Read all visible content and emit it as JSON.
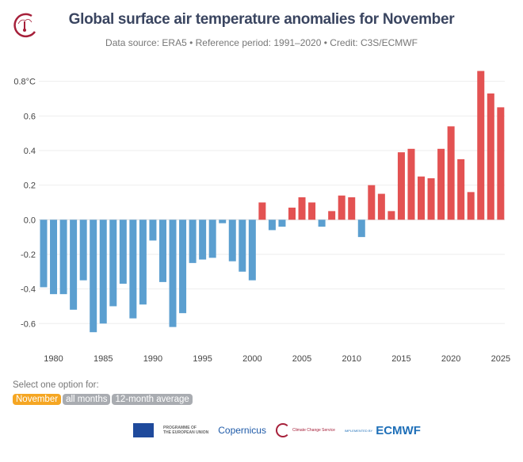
{
  "header": {
    "title": "Global surface air temperature anomalies for November",
    "subtitle": "Data source: ERA5 • Reference period: 1991–2020 • Credit: C3S/ECMWF"
  },
  "selector": {
    "label": "Select one option for:",
    "options": [
      "November",
      "all months",
      "12-month average"
    ],
    "selected": "November",
    "active_color": "#f5a623",
    "inactive_color": "#a9acb1"
  },
  "footer": {
    "eu_text_1": "PROGRAMME OF",
    "eu_text_2": "THE EUROPEAN UNION",
    "copernicus": "opernicus",
    "copernicus_sub": "Europe's eyes on Earth",
    "c3s": "Climate Change Service",
    "implemented": "IMPLEMENTED BY",
    "ecmwf": "ECMWF"
  },
  "chart_data": {
    "type": "bar",
    "title": "Global surface air temperature anomalies for November",
    "xlabel": "",
    "ylabel": "",
    "y_unit": "°C",
    "ylim": [
      -0.7,
      0.85
    ],
    "yticks": [
      -0.6,
      -0.4,
      -0.2,
      0.0,
      0.2,
      0.4,
      0.6,
      0.8
    ],
    "ytick_labels": [
      "-0.6",
      "-0.4",
      "-0.2",
      "0.0",
      "0.2",
      "0.4",
      "0.6",
      "0.8°C"
    ],
    "xticks": [
      1980,
      1985,
      1990,
      1995,
      2000,
      2005,
      2010,
      2015,
      2020,
      2025
    ],
    "grid": true,
    "colors": {
      "positive": "#e35252",
      "negative": "#5b9fd0"
    },
    "categories": [
      1979,
      1980,
      1981,
      1982,
      1983,
      1984,
      1985,
      1986,
      1987,
      1988,
      1989,
      1990,
      1991,
      1992,
      1993,
      1994,
      1995,
      1996,
      1997,
      1998,
      1999,
      2000,
      2001,
      2002,
      2003,
      2004,
      2005,
      2006,
      2007,
      2008,
      2009,
      2010,
      2011,
      2012,
      2013,
      2014,
      2015,
      2016,
      2017,
      2018,
      2019,
      2020,
      2021,
      2022,
      2023,
      2024,
      2025
    ],
    "values": [
      -0.39,
      -0.43,
      -0.43,
      -0.52,
      -0.35,
      -0.65,
      -0.6,
      -0.5,
      -0.37,
      -0.57,
      -0.49,
      -0.12,
      -0.36,
      -0.62,
      -0.54,
      -0.25,
      -0.23,
      -0.22,
      -0.02,
      -0.24,
      -0.3,
      -0.35,
      0.1,
      -0.06,
      -0.04,
      0.07,
      0.13,
      0.1,
      -0.04,
      0.05,
      0.14,
      0.13,
      -0.1,
      0.2,
      0.15,
      0.05,
      0.39,
      0.41,
      0.25,
      0.24,
      0.41,
      0.54,
      0.35,
      0.16,
      0.86,
      0.73,
      0.65
    ]
  }
}
